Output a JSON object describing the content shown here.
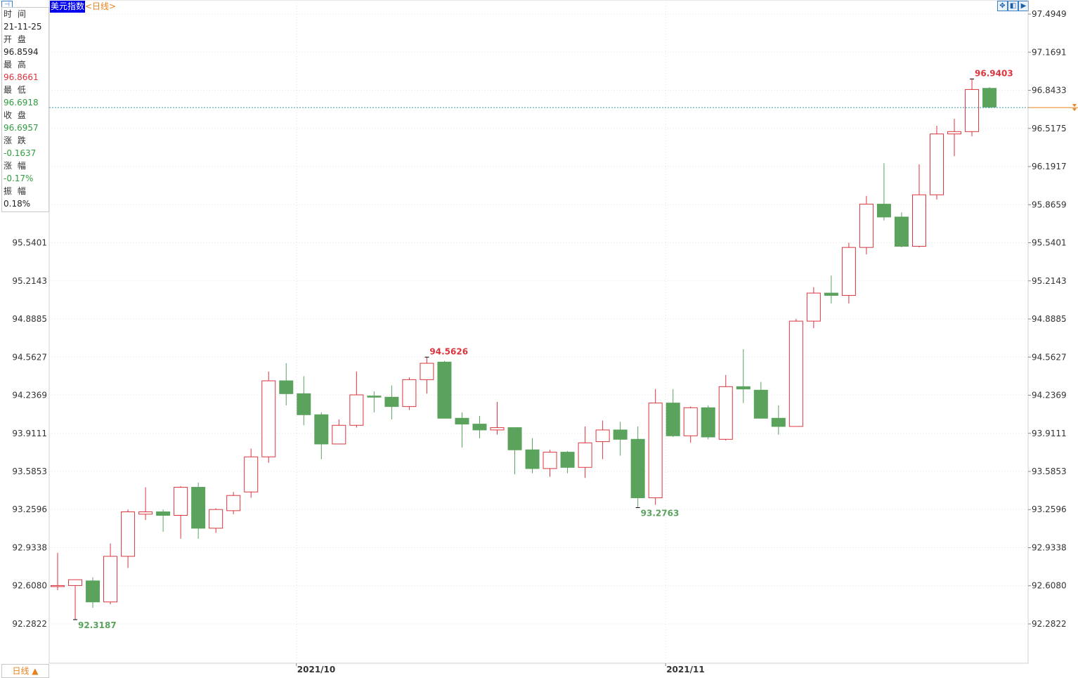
{
  "header": {
    "title": "美元指数",
    "period": "<日线>",
    "icons": [
      "fullscreen-icon",
      "prev-icon",
      "next-icon",
      "settings-icon"
    ]
  },
  "info_panel": {
    "time_label": "时 间",
    "time_value": "21-11-25",
    "open_label": "开 盘",
    "open_value": "96.8594",
    "high_label": "最 高",
    "high_value": "96.8661",
    "low_label": "最 低",
    "low_value": "96.6918",
    "close_label": "收 盘",
    "close_value": "96.6957",
    "change_label": "涨 跌",
    "change_value": "-0.1637",
    "pct_label": "涨 幅",
    "pct_value": "-0.17%",
    "amp_label": "振 幅",
    "amp_value": "0.18%"
  },
  "footer": {
    "period_button": "日线 ▲"
  },
  "colors": {
    "up": "#d9363e",
    "down": "#5ba35d",
    "grid": "#e2e2e2",
    "crosshair": "#3a9aa8",
    "marker": "#e6821e"
  },
  "chart_data": {
    "type": "candlestick",
    "title": "美元指数",
    "y_ticks": [
      "97.4949",
      "97.1691",
      "96.8433",
      "96.5175",
      "96.1917",
      "95.8659",
      "95.5401",
      "95.2143",
      "94.8885",
      "94.5627",
      "94.2369",
      "93.9111",
      "93.5853",
      "93.2596",
      "92.9338",
      "92.6080",
      "92.2822"
    ],
    "y_tick_values": [
      97.4949,
      97.1691,
      96.8433,
      96.5175,
      96.1917,
      95.8659,
      95.5401,
      95.2143,
      94.8885,
      94.5627,
      94.2369,
      93.9111,
      93.5853,
      93.2596,
      92.9338,
      92.608,
      92.2822
    ],
    "left_ticks_start_index": 6,
    "ylim": [
      92.13,
      97.6
    ],
    "x_labels": [
      {
        "label": "2021/10",
        "index": 14
      },
      {
        "label": "2021/11",
        "index": 35
      }
    ],
    "annotations": [
      {
        "text": "92.3187",
        "index": 1,
        "value": 92.3187,
        "kind": "low"
      },
      {
        "text": "94.5626",
        "index": 21,
        "value": 94.5626,
        "kind": "high"
      },
      {
        "text": "93.2763",
        "index": 33,
        "value": 93.2763,
        "kind": "low"
      },
      {
        "text": "96.9403",
        "index": 52,
        "value": 96.9403,
        "kind": "high"
      }
    ],
    "crosshair_value": 96.6957,
    "candles": [
      {
        "o": 92.61,
        "h": 92.89,
        "l": 92.57,
        "c": 92.61
      },
      {
        "o": 92.61,
        "h": 92.66,
        "l": 92.32,
        "c": 92.66
      },
      {
        "o": 92.65,
        "h": 92.68,
        "l": 92.42,
        "c": 92.47
      },
      {
        "o": 92.47,
        "h": 92.97,
        "l": 92.45,
        "c": 92.86
      },
      {
        "o": 92.86,
        "h": 93.26,
        "l": 92.76,
        "c": 93.24
      },
      {
        "o": 93.22,
        "h": 93.45,
        "l": 93.17,
        "c": 93.24
      },
      {
        "o": 93.24,
        "h": 93.26,
        "l": 93.07,
        "c": 93.21
      },
      {
        "o": 93.21,
        "h": 93.46,
        "l": 93.01,
        "c": 93.45
      },
      {
        "o": 93.45,
        "h": 93.49,
        "l": 93.01,
        "c": 93.1
      },
      {
        "o": 93.1,
        "h": 93.27,
        "l": 93.06,
        "c": 93.26
      },
      {
        "o": 93.25,
        "h": 93.41,
        "l": 93.22,
        "c": 93.38
      },
      {
        "o": 93.41,
        "h": 93.78,
        "l": 93.36,
        "c": 93.71
      },
      {
        "o": 93.71,
        "h": 94.44,
        "l": 93.66,
        "c": 94.36
      },
      {
        "o": 94.36,
        "h": 94.51,
        "l": 94.15,
        "c": 94.25
      },
      {
        "o": 94.25,
        "h": 94.4,
        "l": 93.98,
        "c": 94.07
      },
      {
        "o": 94.07,
        "h": 94.09,
        "l": 93.69,
        "c": 93.82
      },
      {
        "o": 93.82,
        "h": 94.03,
        "l": 93.82,
        "c": 93.98
      },
      {
        "o": 93.98,
        "h": 94.44,
        "l": 93.96,
        "c": 94.24
      },
      {
        "o": 94.23,
        "h": 94.27,
        "l": 94.09,
        "c": 94.22
      },
      {
        "o": 94.22,
        "h": 94.32,
        "l": 94.03,
        "c": 94.14
      },
      {
        "o": 94.14,
        "h": 94.39,
        "l": 94.11,
        "c": 94.37
      },
      {
        "o": 94.37,
        "h": 94.56,
        "l": 94.25,
        "c": 94.51
      },
      {
        "o": 94.52,
        "h": 94.53,
        "l": 94.04,
        "c": 94.04
      },
      {
        "o": 94.04,
        "h": 94.09,
        "l": 93.79,
        "c": 93.99
      },
      {
        "o": 93.99,
        "h": 94.06,
        "l": 93.87,
        "c": 93.94
      },
      {
        "o": 93.94,
        "h": 94.18,
        "l": 93.9,
        "c": 93.96
      },
      {
        "o": 93.96,
        "h": 93.96,
        "l": 93.56,
        "c": 93.77
      },
      {
        "o": 93.77,
        "h": 93.87,
        "l": 93.57,
        "c": 93.61
      },
      {
        "o": 93.61,
        "h": 93.77,
        "l": 93.54,
        "c": 93.75
      },
      {
        "o": 93.75,
        "h": 93.76,
        "l": 93.57,
        "c": 93.62
      },
      {
        "o": 93.62,
        "h": 93.97,
        "l": 93.53,
        "c": 93.83
      },
      {
        "o": 93.84,
        "h": 94.02,
        "l": 93.69,
        "c": 93.94
      },
      {
        "o": 93.94,
        "h": 94.01,
        "l": 93.72,
        "c": 93.86
      },
      {
        "o": 93.86,
        "h": 93.97,
        "l": 93.28,
        "c": 93.36
      },
      {
        "o": 93.36,
        "h": 94.29,
        "l": 93.3,
        "c": 94.17
      },
      {
        "o": 94.17,
        "h": 94.29,
        "l": 93.88,
        "c": 93.89
      },
      {
        "o": 93.89,
        "h": 94.14,
        "l": 93.83,
        "c": 94.13
      },
      {
        "o": 94.13,
        "h": 94.15,
        "l": 93.86,
        "c": 93.88
      },
      {
        "o": 93.86,
        "h": 94.41,
        "l": 93.85,
        "c": 94.31
      },
      {
        "o": 94.31,
        "h": 94.63,
        "l": 94.17,
        "c": 94.29
      },
      {
        "o": 94.28,
        "h": 94.35,
        "l": 94.05,
        "c": 94.04
      },
      {
        "o": 94.04,
        "h": 94.15,
        "l": 93.9,
        "c": 93.97
      },
      {
        "o": 93.97,
        "h": 94.89,
        "l": 93.97,
        "c": 94.87
      },
      {
        "o": 94.87,
        "h": 95.16,
        "l": 94.81,
        "c": 95.11
      },
      {
        "o": 95.11,
        "h": 95.26,
        "l": 95.02,
        "c": 95.09
      },
      {
        "o": 95.09,
        "h": 95.54,
        "l": 95.02,
        "c": 95.5
      },
      {
        "o": 95.5,
        "h": 95.94,
        "l": 95.44,
        "c": 95.87
      },
      {
        "o": 95.87,
        "h": 96.22,
        "l": 95.73,
        "c": 95.76
      },
      {
        "o": 95.76,
        "h": 95.8,
        "l": 95.5,
        "c": 95.51
      },
      {
        "o": 95.51,
        "h": 96.21,
        "l": 95.5,
        "c": 95.95
      },
      {
        "o": 95.95,
        "h": 96.54,
        "l": 95.91,
        "c": 96.47
      },
      {
        "o": 96.47,
        "h": 96.6,
        "l": 96.28,
        "c": 96.49
      },
      {
        "o": 96.49,
        "h": 96.94,
        "l": 96.45,
        "c": 96.85
      },
      {
        "o": 96.86,
        "h": 96.87,
        "l": 96.69,
        "c": 96.7
      }
    ]
  }
}
